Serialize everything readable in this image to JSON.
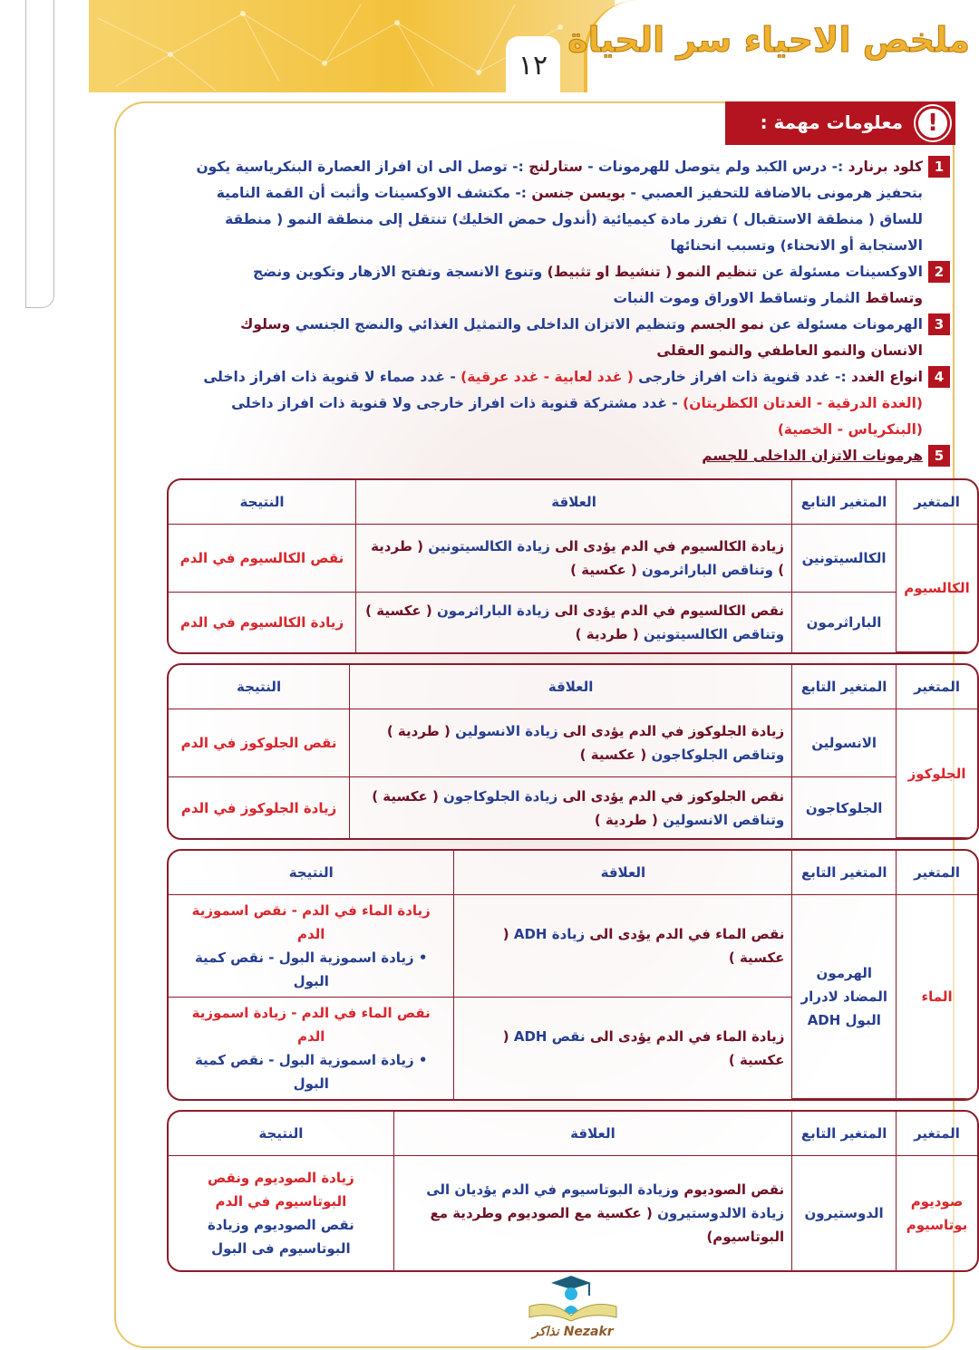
{
  "header": {
    "title": "ملخص الاحياء سر الحياة",
    "page_number": "١٢"
  },
  "section": {
    "label": "معلومات مهمة :",
    "icon": "exclamation-icon"
  },
  "colors": {
    "blue": "#263e8f",
    "dark_red": "#6e1024",
    "red": "#d8262c",
    "badge": "#b3141f",
    "table_border": "#8c1c2a",
    "header_gold": "#f3c23d"
  },
  "items": [
    {
      "num": "1",
      "segs": [
        {
          "c": "d",
          "t": "كلود برنارد"
        },
        {
          "c": "b",
          "t": " :- درس الكبد ولم يتوصل للهرمونات - "
        },
        {
          "c": "d",
          "t": "ستارلنج"
        },
        {
          "c": "b",
          "t": " :- توصل الى ان افراز العصارة البنكرياسية يكون بتحفيز هرمونى بالاضافة للتحفيز العصبي - "
        },
        {
          "c": "d",
          "t": "بويسن جنسن"
        },
        {
          "c": "b",
          "t": " :- مكتشف الاوكسينات وأثبت أن القمة النامية للساق ( منطقة الاستقبال ) تفرز مادة كيميائية (أندول حمض الخليك) تنتقل إلى منطقة النمو ( منطقة الاستجابة أو الانحناء) وتسبب انحنائها"
        }
      ]
    },
    {
      "num": "2",
      "segs": [
        {
          "c": "b",
          "t": "الاوكسينات مسئولة عن "
        },
        {
          "c": "d",
          "t": "تنظيم النمو ( تنشيط او تثبيط)"
        },
        {
          "c": "b",
          "t": " وتنوع الانسجة وتفتح الازهار وتكوين ونضج "
        },
        {
          "c": "d",
          "t": "وتساقط"
        },
        {
          "c": "b",
          "t": " الثمار وتساقط الاوراق وموت النبات"
        }
      ]
    },
    {
      "num": "3",
      "segs": [
        {
          "c": "b",
          "t": "الهرمونات مسئولة عن "
        },
        {
          "c": "d",
          "t": "نمو الجسم"
        },
        {
          "c": "b",
          "t": " وتنظيم الاتزان الداخلى والتمثيل الغذائي والنضج الجنسي "
        },
        {
          "c": "d",
          "t": "وسلوك الانسان والنمو العاطفي والنمو العقلى"
        }
      ]
    },
    {
      "num": "4",
      "segs": [
        {
          "c": "d",
          "t": "انواع الغدد"
        },
        {
          "c": "b",
          "t": " :- غدد قنوية ذات افراز خارجى "
        },
        {
          "c": "r",
          "t": "( غدد لعابية - غدد عرقية)"
        },
        {
          "c": "b",
          "t": " - غدد صماء لا قنوية ذات افراز داخلى "
        },
        {
          "c": "r",
          "t": "(الغدة الدرقية - الغدتان الكظريتان)"
        },
        {
          "c": "b",
          "t": " - غدد مشتركة قنوية ذات افراز خارجى ولا قنوية ذات افراز داخلى "
        },
        {
          "c": "r",
          "t": "(البنكرياس - الخصية)"
        }
      ]
    },
    {
      "num": "5",
      "segs": [
        {
          "c": "d",
          "u": true,
          "t": "هرمونات الاتزان الداخلى للجسم"
        }
      ]
    }
  ],
  "table_headers": [
    "المتغير",
    "المتغير التابع",
    "العلاقة",
    "النتيجة"
  ],
  "tables": [
    {
      "variable": "الكالسيوم",
      "rows": [
        {
          "dependent": "الكالسيتونين",
          "relation": [
            {
              "c": "d",
              "t": "زيادة الكالسيوم في الدم يؤدى الى "
            },
            {
              "c": "b",
              "t": "زيادة الكالسيتونين "
            },
            {
              "c": "d",
              "t": "( طردية )"
            },
            {
              "c": "b",
              "t": " وتناقص الباراثرمون "
            },
            {
              "c": "d",
              "t": "( عكسية )"
            }
          ],
          "result": [
            {
              "c": "r",
              "t": "نقص الكالسيوم في الدم"
            }
          ]
        },
        {
          "dependent": "الباراثرمون",
          "relation": [
            {
              "c": "d",
              "t": "نقص الكالسيوم في الدم يؤدى الى "
            },
            {
              "c": "b",
              "t": "زيادة الباراثرمون "
            },
            {
              "c": "d",
              "t": "( عكسية )"
            },
            {
              "c": "b",
              "t": " وتناقص الكالسيتونين "
            },
            {
              "c": "d",
              "t": "( طردية )"
            }
          ],
          "result": [
            {
              "c": "r",
              "t": "زيادة الكالسيوم في الدم"
            }
          ]
        }
      ]
    },
    {
      "variable": "الجلوكوز",
      "rows": [
        {
          "dependent": "الانسولين",
          "relation": [
            {
              "c": "d",
              "t": "زيادة الجلوكوز في الدم يؤدى الى "
            },
            {
              "c": "b",
              "t": "زيادة الانسولين "
            },
            {
              "c": "d",
              "t": "( طردية )"
            },
            {
              "c": "b",
              "t": " وتناقص الجلوكاجون "
            },
            {
              "c": "d",
              "t": "( عكسية )"
            }
          ],
          "result": [
            {
              "c": "r",
              "t": "نقص الجلوكوز في الدم"
            }
          ]
        },
        {
          "dependent": "الجلوكاجون",
          "relation": [
            {
              "c": "d",
              "t": "نقص الجلوكوز في الدم يؤدى الى "
            },
            {
              "c": "b",
              "t": "زيادة الجلوكاجون "
            },
            {
              "c": "d",
              "t": "( عكسية )"
            },
            {
              "c": "b",
              "t": " وتناقص الانسولين "
            },
            {
              "c": "d",
              "t": "( طردية )"
            }
          ],
          "result": [
            {
              "c": "r",
              "t": "زيادة الجلوكوز في الدم"
            }
          ]
        }
      ]
    },
    {
      "variable": "الماء",
      "dependent": "الهرمون المضاد لادرار البول ADH",
      "rows": [
        {
          "relation": [
            {
              "c": "d",
              "t": "نقص الماء في الدم يؤدى الى "
            },
            {
              "c": "b",
              "t": "زيادة ADH "
            },
            {
              "c": "d",
              "t": "( عكسية )"
            }
          ],
          "result": [
            {
              "c": "r",
              "t": "زيادة الماء في الدم - نقص اسموزية الدم"
            },
            {
              "c": "b",
              "t": "• زيادة اسموزية البول - نقص كمية البول",
              "br": true
            }
          ]
        },
        {
          "relation": [
            {
              "c": "d",
              "t": "زيادة الماء في الدم يؤدى الى "
            },
            {
              "c": "b",
              "t": "نقص ADH "
            },
            {
              "c": "d",
              "t": "( عكسية )"
            }
          ],
          "result": [
            {
              "c": "r",
              "t": "نقص الماء في الدم - زيادة اسموزية الدم"
            },
            {
              "c": "b",
              "t": "• زيادة اسموزية البول - نقص كمية البول",
              "br": true
            }
          ]
        }
      ]
    },
    {
      "variable": "صوديوم بوتاسيوم",
      "rows": [
        {
          "dependent": "الدوستيرون",
          "relation": [
            {
              "c": "d",
              "t": "نقص الصوديوم "
            },
            {
              "c": "b",
              "t": "وزيادة البوتاسيوم في الدم يؤديان الى زيادة الالدوستيرون "
            },
            {
              "c": "d",
              "t": "( عكسية مع الصوديوم وطردية مع البوتاسيوم)"
            }
          ],
          "result": [
            {
              "c": "r",
              "t": "زيادة الصوديوم ونقص البوتاسيوم في الدم"
            },
            {
              "c": "b",
              "t": "نقص الصوديوم وزيادة البوتاسيوم فى البول",
              "br": true
            }
          ]
        }
      ]
    }
  ],
  "logo": {
    "text": "Nezakr نذاكر"
  }
}
